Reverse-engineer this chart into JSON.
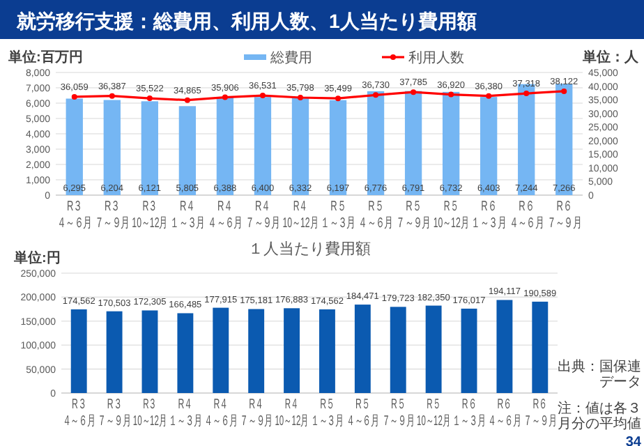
{
  "chart_data": [
    {
      "type": "bar",
      "title": "就労移行支援：総費用、利用人数、1人当たり費用額",
      "ylabel": "単位:百万円",
      "y2label": "単位：人",
      "categories": [
        "R３４～６月",
        "R３７～９月",
        "R３10～12月",
        "R４１～３月",
        "R４４～６月",
        "R４７～９月",
        "R４10～12月",
        "R５１～３月",
        "R５４～６月",
        "R５７～９月",
        "R５10～12月",
        "R６１～３月",
        "R６４～６月",
        "R６７～９月"
      ],
      "series": [
        {
          "type": "bar",
          "name": "総費用",
          "color": "#75b6f3",
          "values": [
            6295,
            6204,
            6121,
            5805,
            6388,
            6400,
            6332,
            6197,
            6776,
            6791,
            6732,
            6403,
            7244,
            7266
          ],
          "value_labels": [
            "6,295",
            "6,204",
            "6,121",
            "5,805",
            "6,388",
            "6,400",
            "6,332",
            "6,197",
            "6,776",
            "6,791",
            "6,732",
            "6,403",
            "7,244",
            "7,266"
          ]
        },
        {
          "type": "line",
          "name": "利用人数",
          "color": "#ff0000",
          "axis": "y2",
          "values": [
            36059,
            36387,
            35522,
            34865,
            35906,
            36531,
            35798,
            35499,
            36730,
            37785,
            36920,
            36380,
            37318,
            38122
          ],
          "value_labels": [
            "36,059",
            "36,387",
            "35,522",
            "34,865",
            "35,906",
            "36,531",
            "35,798",
            "35,499",
            "36,730",
            "37,785",
            "36,920",
            "36,380",
            "37,318",
            "38,122"
          ]
        }
      ],
      "ylim": [
        0,
        8000
      ],
      "yticks": [
        {
          "value": 0,
          "label": "0"
        },
        {
          "value": 1000,
          "label": "1,000"
        },
        {
          "value": 2000,
          "label": "2,000"
        },
        {
          "value": 3000,
          "label": "3,000"
        },
        {
          "value": 4000,
          "label": "4,000"
        },
        {
          "value": 5000,
          "label": "5,000"
        },
        {
          "value": 6000,
          "label": "6,000"
        },
        {
          "value": 7000,
          "label": "7,000"
        },
        {
          "value": 8000,
          "label": "8,000"
        }
      ],
      "y2lim": [
        0,
        45000
      ],
      "y2ticks": [
        {
          "value": 0,
          "label": "0"
        },
        {
          "value": 5000,
          "label": "5,000"
        },
        {
          "value": 10000,
          "label": "10,000"
        },
        {
          "value": 15000,
          "label": "15,000"
        },
        {
          "value": 20000,
          "label": "20,000"
        },
        {
          "value": 25000,
          "label": "25,000"
        },
        {
          "value": 30000,
          "label": "30,000"
        },
        {
          "value": 35000,
          "label": "35,000"
        },
        {
          "value": 40000,
          "label": "40,000"
        },
        {
          "value": 45000,
          "label": "45,000"
        }
      ],
      "grid": "y",
      "legend": "top",
      "marker": "circle"
    },
    {
      "type": "bar",
      "title": "１人当たり費用額",
      "ylabel": "単位:円",
      "categories": [
        "R３４～６月",
        "R３７～９月",
        "R３10～12月",
        "R４１～３月",
        "R４４～６月",
        "R４７～９月",
        "R４10～12月",
        "R５１～３月",
        "R５４～６月",
        "R５７～９月",
        "R５10～12月",
        "R６１～３月",
        "R６４～６月",
        "R６７～９月"
      ],
      "series": [
        {
          "type": "bar",
          "color": "#0b5ab0",
          "values": [
            174562,
            170503,
            172305,
            166485,
            177915,
            175181,
            176883,
            174562,
            184471,
            179723,
            182350,
            176017,
            194117,
            190589
          ],
          "value_labels": [
            "174,562",
            "170,503",
            "172,305",
            "166,485",
            "177,915",
            "175,181",
            "176,883",
            "174,562",
            "184,471",
            "179,723",
            "182,350",
            "176,017",
            "194,117",
            "190,589"
          ]
        }
      ],
      "ylim": [
        0,
        250000
      ],
      "yticks": [
        {
          "value": 0,
          "label": "0"
        },
        {
          "value": 50000,
          "label": "50,000"
        },
        {
          "value": 100000,
          "label": "100,000"
        },
        {
          "value": 150000,
          "label": "150,000"
        },
        {
          "value": 200000,
          "label": "200,000"
        },
        {
          "value": 250000,
          "label": "250,000"
        }
      ],
      "grid": "y",
      "annotations": [
        "出典：国保連データ",
        "注：値は各３月分の平均値",
        "34"
      ]
    }
  ]
}
